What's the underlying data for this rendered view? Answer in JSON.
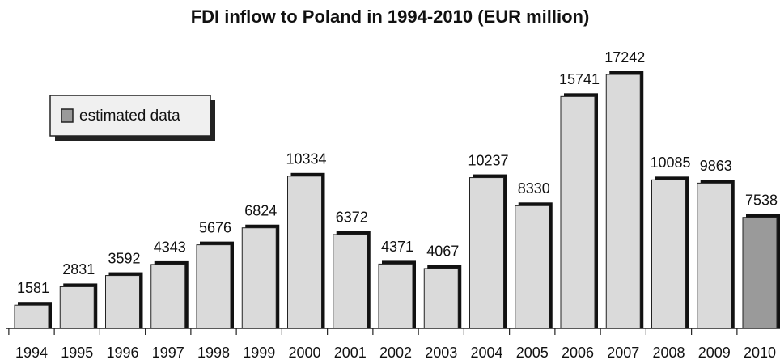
{
  "chart_data": {
    "type": "bar",
    "title": "FDI inflow to Poland in 1994-2010 (EUR million)",
    "categories": [
      "1994",
      "1995",
      "1996",
      "1997",
      "1998",
      "1999",
      "2000",
      "2001",
      "2002",
      "2003",
      "2004",
      "2005",
      "2006",
      "2007",
      "2008",
      "2009",
      "2010"
    ],
    "values": [
      1581,
      2831,
      3592,
      4343,
      5676,
      6824,
      10334,
      6372,
      4371,
      4067,
      10237,
      8330,
      15741,
      17242,
      10085,
      9863,
      7538
    ],
    "colors": [
      "#dadada",
      "#dadada",
      "#dadada",
      "#dadada",
      "#dadada",
      "#dadada",
      "#dadada",
      "#dadada",
      "#dadada",
      "#dadada",
      "#dadada",
      "#dadada",
      "#dadada",
      "#dadada",
      "#dadada",
      "#dadada",
      "#9a9a9a"
    ],
    "legend": {
      "label": "estimated data",
      "color": "#9a9a9a"
    }
  }
}
